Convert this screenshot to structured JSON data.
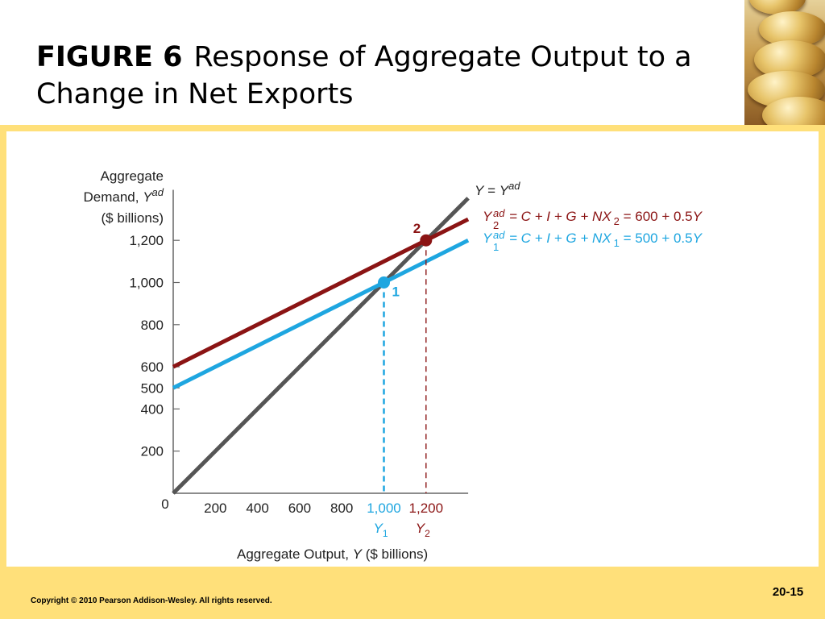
{
  "slide": {
    "figure_label": "FIGURE 6",
    "title": "Response of Aggregate Output to a Change in Net Exports",
    "copyright": "Copyright © 2010 Pearson Addison-Wesley. All rights reserved.",
    "page_number": "20-15"
  },
  "colors": {
    "y_ad_1": "#1ea6e0",
    "y_ad_2": "#8b1414",
    "forty_five": "#555555",
    "frame": "#ffe07a"
  },
  "chart_data": {
    "type": "line",
    "ylabel_lines": [
      "Aggregate",
      "Demand, Y ad",
      "($ billions)"
    ],
    "ylabel": {
      "l1": "Aggregate",
      "l2": "Demand,",
      "sym": "Y",
      "sup": "ad",
      "l3": "($ billions)"
    },
    "xlabel": {
      "pre": "Aggregate Output,",
      "sym": "Y",
      "post": "($ billions)"
    },
    "origin_label": "0",
    "xlim": [
      0,
      1400
    ],
    "ylim": [
      0,
      1400
    ],
    "x_ticks": [
      {
        "value": 200,
        "label": "200"
      },
      {
        "value": 400,
        "label": "400"
      },
      {
        "value": 600,
        "label": "600"
      },
      {
        "value": 800,
        "label": "800"
      }
    ],
    "y_ticks": [
      {
        "value": 200,
        "label": "200"
      },
      {
        "value": 400,
        "label": "400"
      },
      {
        "value": 500,
        "label": "500"
      },
      {
        "value": 600,
        "label": "600"
      },
      {
        "value": 800,
        "label": "800"
      },
      {
        "value": 1000,
        "label": "1,000"
      },
      {
        "value": 1200,
        "label": "1,200"
      }
    ],
    "series": [
      {
        "id": "forty_five",
        "intercept": 0,
        "slope": 1,
        "x": [
          0,
          1400
        ],
        "y": [
          0,
          1400
        ]
      },
      {
        "id": "y_ad_2",
        "intercept": 600,
        "slope": 0.5,
        "x": [
          0,
          1400
        ],
        "y": [
          600,
          1300
        ]
      },
      {
        "id": "y_ad_1",
        "intercept": 500,
        "slope": 0.5,
        "x": [
          0,
          1400
        ],
        "y": [
          500,
          1200
        ]
      }
    ],
    "series_labels": {
      "forty_five": {
        "a": "Y",
        "eq": "=",
        "b": "Y",
        "sup": "ad"
      },
      "y_ad_2": {
        "sym": "Y",
        "sup": "ad",
        "sub": "2",
        "eq": "= C + I + G + NX",
        "eq_sub": "2",
        "rhs": "= 600 + 0.5",
        "rhs_sym": "Y"
      },
      "y_ad_1": {
        "sym": "Y",
        "sup": "ad",
        "sub": "1",
        "eq": "= C + I + G + NX",
        "eq_sub": "1",
        "rhs": "= 500 + 0.5",
        "rhs_sym": "Y"
      }
    },
    "equilibria": [
      {
        "x": 1000,
        "y": 1000,
        "label": "1",
        "x_tick": "1,000",
        "x_sym": "Y",
        "x_sub": "1",
        "series": "y_ad_1"
      },
      {
        "x": 1200,
        "y": 1200,
        "label": "2",
        "x_tick": "1,200",
        "x_sym": "Y",
        "x_sub": "2",
        "series": "y_ad_2"
      }
    ]
  }
}
